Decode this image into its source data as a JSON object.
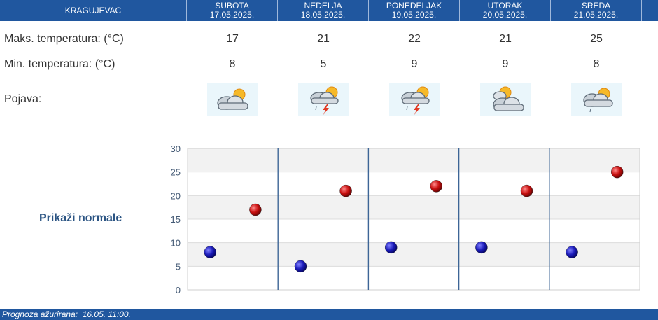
{
  "header": {
    "city": "KRAGUJEVAC",
    "days": [
      {
        "name": "SUBOTA",
        "date": "17.05.2025."
      },
      {
        "name": "NEDELJA",
        "date": "18.05.2025."
      },
      {
        "name": "PONEDELJAK",
        "date": "19.05.2025."
      },
      {
        "name": "UTORAK",
        "date": "20.05.2025."
      },
      {
        "name": "SREDA",
        "date": "21.05.2025."
      }
    ]
  },
  "rows": {
    "max_label": "Maks. temperatura: (°C)",
    "min_label": "Min. temperatura: (°C)",
    "pojava_label": "Pojava:",
    "max": [
      "17",
      "21",
      "22",
      "21",
      "25"
    ],
    "min": [
      "8",
      "5",
      "9",
      "9",
      "8"
    ]
  },
  "icons": [
    "partly-cloudy-icon",
    "thunderstorm-rain-icon",
    "thunderstorm-rain-icon",
    "partly-cloudy-icon",
    "cloudy-rain-icon"
  ],
  "show_normals": "Prikaži normale",
  "chart_data": {
    "type": "scatter",
    "categories": [
      "SUBOTA",
      "NEDELJA",
      "PONEDELJAK",
      "UTORAK",
      "SREDA"
    ],
    "series": [
      {
        "values": [
          8,
          5,
          9,
          9,
          8
        ],
        "color": "#1a1ab8"
      },
      {
        "values": [
          17,
          21,
          22,
          21,
          25
        ],
        "color": "#c80f0f"
      }
    ],
    "ylim": [
      0,
      30
    ],
    "yticks": [
      "0",
      "5",
      "10",
      "15",
      "20",
      "25",
      "30"
    ],
    "grid": true
  },
  "footer": {
    "label": "Prognoza ažurirana:",
    "value": "16.05. 11:00."
  },
  "colors": {
    "header": "#20579f",
    "accent": "#2b5483"
  }
}
